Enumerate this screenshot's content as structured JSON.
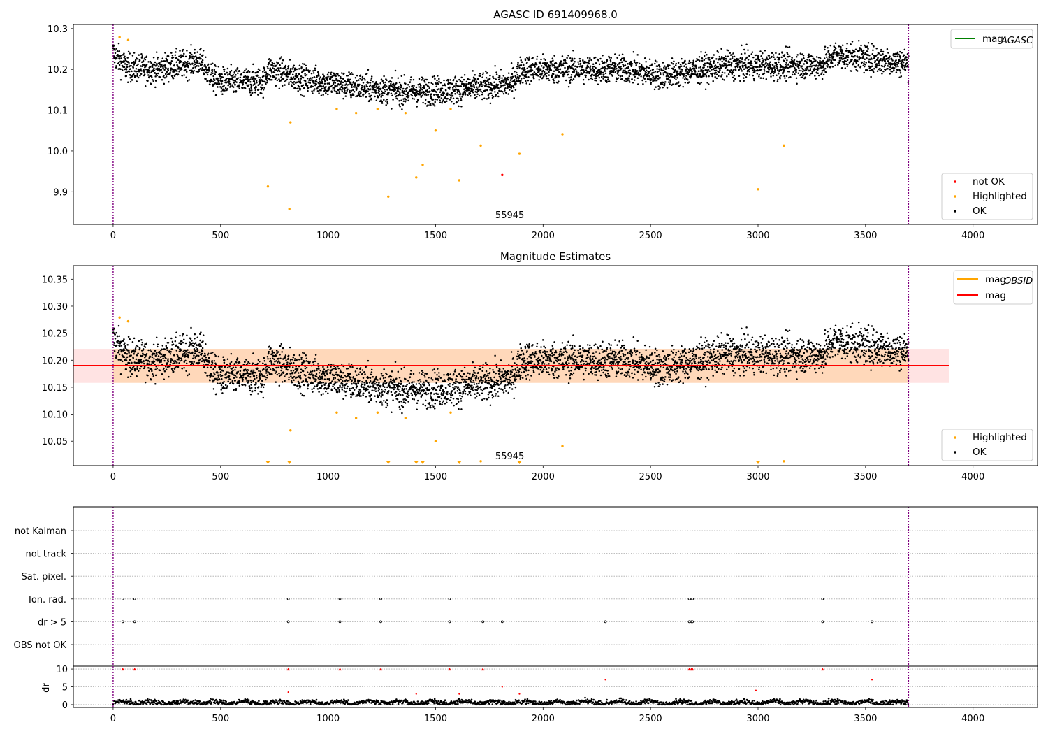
{
  "chart_data": [
    {
      "type": "scatter",
      "title": "AGASC ID 691409968.0",
      "xlim": [
        -185,
        4300
      ],
      "ylim": [
        9.82,
        10.31
      ],
      "xticks": [
        0,
        500,
        1000,
        1500,
        2000,
        2500,
        3000,
        3500,
        4000
      ],
      "yticks": [
        9.9,
        10.0,
        10.1,
        10.2,
        10.3
      ],
      "ytick_labels": [
        "9.9",
        "10.0",
        "10.1",
        "10.2",
        "10.3"
      ],
      "vlines": [
        0,
        3700
      ],
      "annotation": "55945",
      "line_legend": [
        {
          "label": "mag",
          "sub": "AGASC",
          "color": "#008000"
        }
      ],
      "marker_legend": [
        {
          "label": "not OK",
          "color": "#ff0000"
        },
        {
          "label": "Highlighted",
          "color": "#ffa500"
        },
        {
          "label": "OK",
          "color": "#000000"
        }
      ],
      "series": [
        {
          "name": "OK",
          "color": "#000000",
          "trend": [
            [
              0,
              10.24
            ],
            [
              60,
              10.205
            ],
            [
              200,
              10.2
            ],
            [
              400,
              10.22
            ],
            [
              480,
              10.17
            ],
            [
              700,
              10.17
            ],
            [
              720,
              10.2
            ],
            [
              900,
              10.175
            ],
            [
              1100,
              10.16
            ],
            [
              1350,
              10.145
            ],
            [
              1600,
              10.15
            ],
            [
              1850,
              10.165
            ],
            [
              1900,
              10.2
            ],
            [
              2400,
              10.2
            ],
            [
              2550,
              10.185
            ],
            [
              2850,
              10.21
            ],
            [
              3300,
              10.21
            ],
            [
              3350,
              10.235
            ],
            [
              3700,
              10.215
            ]
          ],
          "spread": 0.017
        },
        {
          "name": "Highlighted",
          "color": "#ffa500",
          "points": [
            [
              30,
              10.279
            ],
            [
              70,
              10.272
            ],
            [
              720,
              9.913
            ],
            [
              820,
              9.858
            ],
            [
              825,
              10.07
            ],
            [
              1040,
              10.103
            ],
            [
              1130,
              10.093
            ],
            [
              1230,
              10.103
            ],
            [
              1280,
              9.888
            ],
            [
              1360,
              10.093
            ],
            [
              1410,
              9.935
            ],
            [
              1440,
              9.966
            ],
            [
              1500,
              10.05
            ],
            [
              1570,
              10.103
            ],
            [
              1610,
              9.928
            ],
            [
              1710,
              10.013
            ],
            [
              1890,
              9.993
            ],
            [
              2090,
              10.041
            ],
            [
              3000,
              9.906
            ],
            [
              3120,
              10.013
            ]
          ]
        },
        {
          "name": "not OK",
          "color": "#ff0000",
          "points": [
            [
              1810,
              9.941
            ]
          ]
        }
      ]
    },
    {
      "type": "scatter",
      "title": "Magnitude Estimates",
      "xlim": [
        -185,
        4300
      ],
      "ylim": [
        10.005,
        10.375
      ],
      "xticks": [
        0,
        500,
        1000,
        1500,
        2000,
        2500,
        3000,
        3500,
        4000
      ],
      "yticks": [
        10.05,
        10.1,
        10.15,
        10.2,
        10.25,
        10.3,
        10.35
      ],
      "ytick_labels": [
        "10.05",
        "10.10",
        "10.15",
        "10.20",
        "10.25",
        "10.30",
        "10.35"
      ],
      "vlines": [
        0,
        3700
      ],
      "annotation": "55945",
      "mag_line": 10.19,
      "band": [
        10.158,
        10.221
      ],
      "band_x": [
        -185,
        3890
      ],
      "line_legend": [
        {
          "label": "mag",
          "sub": "OBSID",
          "color": "#ffa500"
        },
        {
          "label": "mag",
          "sub": "",
          "color": "#ff0000"
        }
      ],
      "marker_legend": [
        {
          "label": "Highlighted",
          "color": "#ffa500"
        },
        {
          "label": "OK",
          "color": "#000000"
        }
      ],
      "series": [
        {
          "name": "OK",
          "color": "#000000",
          "trend": [
            [
              0,
              10.24
            ],
            [
              60,
              10.205
            ],
            [
              200,
              10.2
            ],
            [
              400,
              10.22
            ],
            [
              480,
              10.17
            ],
            [
              700,
              10.17
            ],
            [
              720,
              10.2
            ],
            [
              900,
              10.175
            ],
            [
              1100,
              10.16
            ],
            [
              1350,
              10.145
            ],
            [
              1600,
              10.15
            ],
            [
              1850,
              10.165
            ],
            [
              1900,
              10.2
            ],
            [
              2400,
              10.2
            ],
            [
              2550,
              10.185
            ],
            [
              2850,
              10.21
            ],
            [
              3300,
              10.21
            ],
            [
              3350,
              10.235
            ],
            [
              3700,
              10.215
            ]
          ],
          "spread": 0.017
        },
        {
          "name": "Highlighted",
          "color": "#ffa500",
          "points": [
            [
              30,
              10.279
            ],
            [
              70,
              10.272
            ],
            [
              825,
              10.07
            ],
            [
              1040,
              10.103
            ],
            [
              1130,
              10.093
            ],
            [
              1230,
              10.103
            ],
            [
              1360,
              10.093
            ],
            [
              1500,
              10.05
            ],
            [
              1570,
              10.103
            ],
            [
              1710,
              10.013
            ],
            [
              2090,
              10.041
            ],
            [
              3120,
              10.013
            ]
          ],
          "lower_markers": [
            720,
            820,
            1280,
            1410,
            1440,
            1610,
            1890,
            3000
          ]
        }
      ]
    },
    {
      "type": "scatter",
      "title": "",
      "xlim": [
        -185,
        4300
      ],
      "xticks": [
        0,
        500,
        1000,
        1500,
        2000,
        2500,
        3000,
        3500,
        4000
      ],
      "vlines": [
        0,
        3700
      ],
      "flag_rows": [
        "not Kalman",
        "not track",
        "Sat. pixel.",
        "Ion. rad.",
        "dr > 5",
        "OBS not OK"
      ],
      "flags": {
        "Ion. rad.": [
          45,
          100,
          815,
          1055,
          1245,
          1565,
          2680,
          2690,
          2695,
          3300
        ],
        "dr > 5": [
          45,
          100,
          815,
          1055,
          1245,
          1565,
          1720,
          1810,
          2290,
          2680,
          2690,
          2695,
          3300,
          3530
        ]
      },
      "dr_panel": {
        "ylabel": "dr",
        "ylim": [
          -0.8,
          10.8
        ],
        "yticks": [
          0,
          5,
          10
        ],
        "ytick_labels": [
          "0",
          "5",
          "10"
        ],
        "baseline": 0.6,
        "spread": 0.35,
        "red_points": [
          [
            45,
            10
          ],
          [
            100,
            10
          ],
          [
            815,
            10
          ],
          [
            1055,
            10
          ],
          [
            1245,
            10
          ],
          [
            1565,
            10
          ],
          [
            1720,
            10
          ],
          [
            2680,
            10
          ],
          [
            2690,
            10
          ],
          [
            2695,
            10
          ],
          [
            3300,
            10
          ],
          [
            815,
            3.5
          ],
          [
            1410,
            3
          ],
          [
            1610,
            3
          ],
          [
            1810,
            5
          ],
          [
            1890,
            3
          ],
          [
            2290,
            7
          ],
          [
            2990,
            4
          ],
          [
            3530,
            7
          ]
        ]
      }
    }
  ]
}
